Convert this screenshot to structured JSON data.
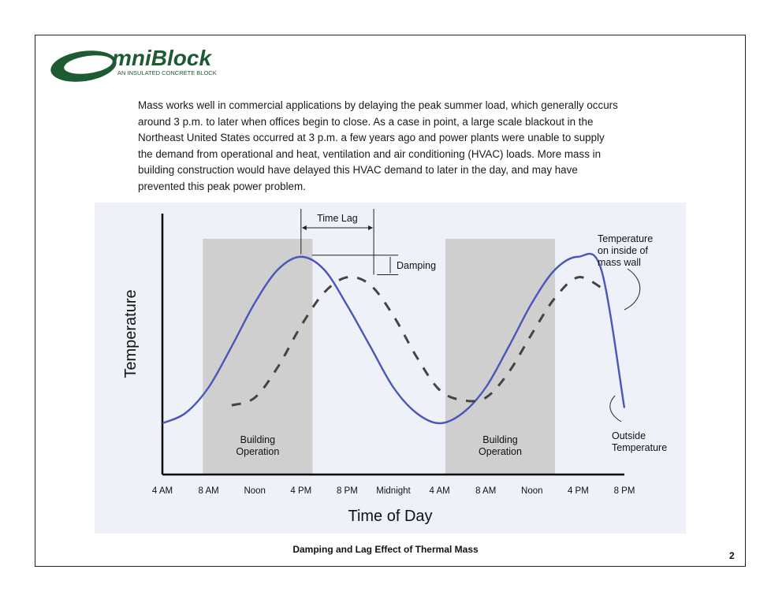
{
  "brand": {
    "name": "mniBlock",
    "tagline": "AN INSULATED CONCRETE BLOCK",
    "color": "#1e5a32"
  },
  "intro_text": "Mass works well in commercial applications by delaying the peak summer load, which generally occurs around 3 p.m. to later when offices begin to close. As a case in point, a large scale blackout in the Northeast United States occurred at 3 p.m. a few years ago and power plants were unable to supply the demand from operational and heat, ventilation and air conditioning (HVAC) loads. More mass in building construction would have delayed this HVAC demand to later in the day, and may have prevented this peak power problem.",
  "caption": "Damping and Lag Effect of Thermal Mass",
  "page_number": "2",
  "chart_data": {
    "type": "line",
    "xlabel": "Time of Day",
    "ylabel": "Temperature",
    "x_ticks": [
      "4 AM",
      "8 AM",
      "Noon",
      "4 PM",
      "8 PM",
      "Midnight",
      "4 AM",
      "8 AM",
      "Noon",
      "4 PM",
      "8 PM"
    ],
    "x_tick_hours": [
      4,
      8,
      12,
      16,
      20,
      24,
      28,
      32,
      36,
      40,
      44
    ],
    "xlim": [
      4,
      44
    ],
    "ylim": [
      0,
      1
    ],
    "grid": false,
    "shaded_regions": [
      {
        "label": "Building\nOperation",
        "x_start": 7.5,
        "x_end": 17
      },
      {
        "label": "Building\nOperation",
        "x_start": 28.5,
        "x_end": 38
      }
    ],
    "series": [
      {
        "name": "Outside Temperature",
        "style": "solid",
        "color": "#4a56b8",
        "x": [
          4,
          6,
          8,
          10,
          12,
          14,
          16,
          18,
          20,
          22,
          24,
          26,
          28,
          30,
          32,
          34,
          36,
          38,
          40,
          42,
          44
        ],
        "y": [
          0.2,
          0.24,
          0.34,
          0.5,
          0.67,
          0.8,
          0.85,
          0.8,
          0.66,
          0.5,
          0.34,
          0.24,
          0.2,
          0.24,
          0.34,
          0.5,
          0.67,
          0.8,
          0.85,
          0.8,
          0.26
        ]
      },
      {
        "name": "Temperature on inside of mass wall",
        "style": "dashed",
        "color": "#444444",
        "x": [
          10,
          12,
          14,
          16,
          18,
          20,
          22,
          24,
          26,
          28,
          30,
          32,
          34,
          36,
          38,
          40,
          42
        ],
        "y": [
          0.27,
          0.3,
          0.42,
          0.58,
          0.71,
          0.77,
          0.74,
          0.62,
          0.46,
          0.33,
          0.29,
          0.3,
          0.4,
          0.55,
          0.69,
          0.77,
          0.73
        ]
      }
    ],
    "annotations": {
      "time_lag": "Time Lag",
      "damping": "Damping",
      "inside_label": "Temperature\non inside of\nmass wall",
      "outside_label": "Outside\nTemperature"
    }
  }
}
